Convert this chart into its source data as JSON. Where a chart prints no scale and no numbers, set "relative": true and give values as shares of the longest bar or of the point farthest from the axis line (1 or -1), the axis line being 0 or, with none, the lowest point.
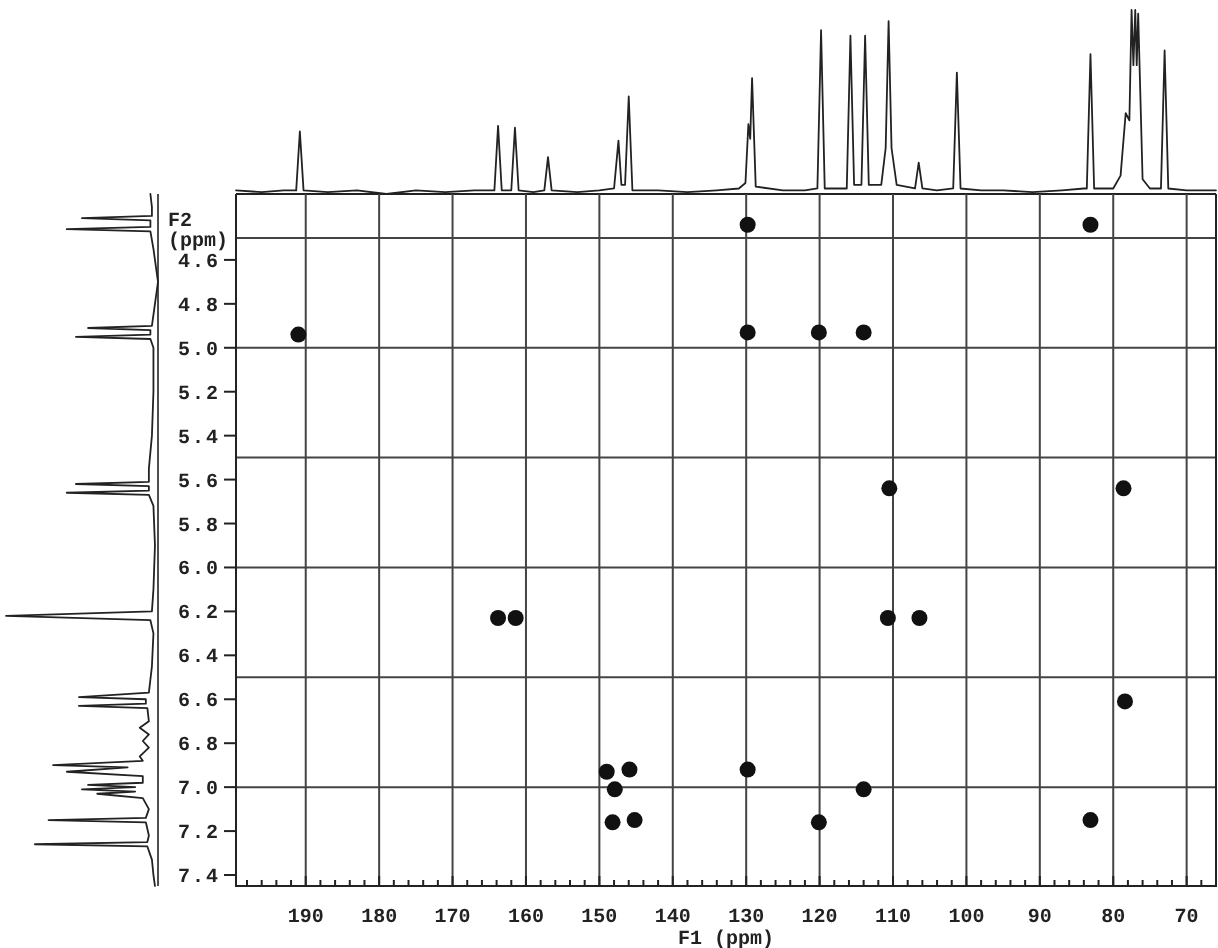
{
  "chart_data": [
    {
      "type": "line",
      "relative": true,
      "color": "#222222",
      "line_style": "solid",
      "xlim": [
        199.5,
        66
      ],
      "x": [
        199.5,
        196,
        193,
        191.3,
        190.8,
        190.3,
        187,
        183,
        179,
        175,
        171,
        167,
        164.3,
        163.8,
        163.3,
        162,
        161.5,
        161,
        159,
        157.5,
        157.0,
        156.5,
        153,
        150,
        148,
        147.4,
        147.0,
        146.5,
        146.0,
        145.5,
        142,
        138,
        134,
        131,
        130.1,
        129.7,
        129.45,
        129.2,
        128.7,
        125,
        122,
        120.3,
        119.8,
        119.3,
        117,
        116.3,
        115.8,
        115.3,
        114.3,
        113.8,
        113.3,
        111.6,
        111.0,
        110.6,
        110.2,
        109.5,
        107.0,
        106.5,
        106.0,
        104,
        101.8,
        101.3,
        100.8,
        98,
        95,
        91,
        87,
        84,
        83.6,
        83.1,
        82.6,
        80,
        79.0,
        78.3,
        77.8,
        77.5,
        77.25,
        77.0,
        76.8,
        76.6,
        76.0,
        75,
        73.5,
        73.0,
        72.5,
        70,
        67.5,
        66
      ],
      "values": [
        0.02,
        0.01,
        0.02,
        0.02,
        0.34,
        0.02,
        0.01,
        0.02,
        0,
        0.02,
        0.01,
        0.02,
        0.02,
        0.37,
        0.02,
        0.02,
        0.36,
        0.02,
        0.01,
        0.02,
        0.2,
        0.02,
        0.01,
        0.02,
        0.03,
        0.29,
        0.05,
        0.05,
        0.53,
        0.02,
        0.02,
        0.01,
        0.02,
        0.03,
        0.06,
        0.38,
        0.3,
        0.63,
        0.04,
        0.02,
        0.02,
        0.03,
        0.89,
        0.03,
        0.03,
        0.03,
        0.86,
        0.05,
        0.05,
        0.86,
        0.05,
        0.05,
        0.25,
        0.94,
        0.25,
        0.05,
        0.03,
        0.17,
        0.03,
        0.02,
        0.03,
        0.66,
        0.03,
        0.02,
        0.02,
        0.01,
        0.02,
        0.03,
        0.03,
        0.76,
        0.03,
        0.03,
        0.1,
        0.44,
        0.4,
        1.0,
        0.7,
        1.0,
        0.7,
        0.98,
        0.08,
        0.03,
        0.03,
        0.78,
        0.03,
        0.02,
        0.02,
        0.02
      ]
    },
    {
      "type": "line",
      "orientation": "horizontal",
      "relative": true,
      "color": "#222222",
      "line_style": "solid",
      "ylim": [
        7.45,
        4.3
      ],
      "x": [
        4.3,
        4.36,
        4.4,
        4.41,
        4.42,
        4.45,
        4.46,
        4.47,
        4.55,
        4.7,
        4.85,
        4.9,
        4.91,
        4.92,
        4.94,
        4.95,
        4.96,
        5.0,
        5.2,
        5.4,
        5.55,
        5.61,
        5.62,
        5.63,
        5.65,
        5.66,
        5.67,
        5.72,
        5.9,
        6.1,
        6.2,
        6.22,
        6.24,
        6.3,
        6.45,
        6.57,
        6.59,
        6.6,
        6.62,
        6.63,
        6.64,
        6.7,
        6.73,
        6.76,
        6.79,
        6.82,
        6.86,
        6.88,
        6.9,
        6.91,
        6.93,
        6.95,
        6.98,
        6.99,
        7.0,
        7.01,
        7.02,
        7.03,
        7.05,
        7.1,
        7.14,
        7.15,
        7.16,
        7.22,
        7.25,
        7.26,
        7.27,
        7.33,
        7.4,
        7.45
      ],
      "values": [
        -0.05,
        -0.04,
        -0.04,
        -0.5,
        -0.05,
        -0.05,
        -0.6,
        -0.05,
        -0.03,
        0,
        -0.03,
        -0.04,
        -0.46,
        -0.05,
        -0.05,
        -0.54,
        -0.05,
        -0.03,
        -0.03,
        -0.04,
        -0.06,
        -0.06,
        -0.54,
        -0.06,
        -0.06,
        -0.6,
        -0.06,
        -0.03,
        -0.02,
        -0.03,
        -0.04,
        -1.0,
        -0.05,
        -0.03,
        -0.04,
        -0.06,
        -0.52,
        -0.08,
        -0.08,
        -0.52,
        -0.07,
        -0.06,
        -0.12,
        -0.06,
        -0.1,
        -0.06,
        -0.12,
        -0.1,
        -0.69,
        -0.2,
        -0.6,
        -0.1,
        -0.1,
        -0.46,
        -0.15,
        -0.5,
        -0.15,
        -0.4,
        -0.1,
        -0.06,
        -0.08,
        -0.72,
        -0.08,
        -0.06,
        -0.07,
        -0.81,
        -0.07,
        -0.04,
        -0.03,
        -0.02
      ]
    },
    {
      "type": "scatter",
      "color": "#111111",
      "marker": "circle",
      "xlabel": "F1 (ppm)",
      "ylabel": "F2 (ppm)",
      "grid": "x",
      "xlim": [
        199.5,
        66
      ],
      "ylim": [
        7.45,
        4.3
      ],
      "xticks": [
        {
          "value": 198,
          "label": null
        },
        {
          "value": 196,
          "label": null
        },
        {
          "value": 194,
          "label": null
        },
        {
          "value": 192,
          "label": null
        },
        190,
        {
          "value": 188,
          "label": null
        },
        {
          "value": 186,
          "label": null
        },
        {
          "value": 184,
          "label": null
        },
        {
          "value": 182,
          "label": null
        },
        180,
        {
          "value": 178,
          "label": null
        },
        {
          "value": 176,
          "label": null
        },
        {
          "value": 174,
          "label": null
        },
        {
          "value": 172,
          "label": null
        },
        170,
        {
          "value": 168,
          "label": null
        },
        {
          "value": 166,
          "label": null
        },
        {
          "value": 164,
          "label": null
        },
        {
          "value": 162,
          "label": null
        },
        160,
        {
          "value": 158,
          "label": null
        },
        {
          "value": 156,
          "label": null
        },
        {
          "value": 154,
          "label": null
        },
        {
          "value": 152,
          "label": null
        },
        150,
        {
          "value": 148,
          "label": null
        },
        {
          "value": 146,
          "label": null
        },
        {
          "value": 144,
          "label": null
        },
        {
          "value": 142,
          "label": null
        },
        140,
        {
          "value": 138,
          "label": null
        },
        {
          "value": 136,
          "label": null
        },
        {
          "value": 134,
          "label": null
        },
        {
          "value": 132,
          "label": null
        },
        130,
        {
          "value": 128,
          "label": null
        },
        {
          "value": 126,
          "label": null
        },
        {
          "value": 124,
          "label": null
        },
        {
          "value": 122,
          "label": null
        },
        120,
        {
          "value": 118,
          "label": null
        },
        {
          "value": 116,
          "label": null
        },
        {
          "value": 114,
          "label": null
        },
        {
          "value": 112,
          "label": null
        },
        110,
        {
          "value": 108,
          "label": null
        },
        {
          "value": 106,
          "label": null
        },
        {
          "value": 104,
          "label": null
        },
        {
          "value": 102,
          "label": null
        },
        100,
        {
          "value": 98,
          "label": null
        },
        {
          "value": 96,
          "label": null
        },
        {
          "value": 94,
          "label": null
        },
        {
          "value": 92,
          "label": null
        },
        90,
        {
          "value": 88,
          "label": null
        },
        {
          "value": 86,
          "label": null
        },
        {
          "value": 84,
          "label": null
        },
        {
          "value": 82,
          "label": null
        },
        80,
        {
          "value": 78,
          "label": null
        },
        {
          "value": 76,
          "label": null
        },
        {
          "value": 74,
          "label": null
        },
        {
          "value": 72,
          "label": null
        },
        70,
        {
          "value": 68,
          "label": null
        }
      ],
      "yticks": [
        4.6,
        4.8,
        {
          "value": 5,
          "label": "5.0"
        },
        5.2,
        5.4,
        5.6,
        5.8,
        {
          "value": 6,
          "label": "6.0"
        },
        6.2,
        6.4,
        6.6,
        6.8,
        {
          "value": 7,
          "label": "7.0"
        },
        7.2,
        7.4
      ],
      "ref_lines": [
        {
          "axis": "y",
          "value": 4.5,
          "color": "#444444"
        },
        {
          "axis": "y",
          "value": 5.0,
          "color": "#444444"
        },
        {
          "axis": "y",
          "value": 5.5,
          "color": "#444444"
        },
        {
          "axis": "y",
          "value": 6.0,
          "color": "#444444"
        },
        {
          "axis": "y",
          "value": 6.5,
          "color": "#444444"
        },
        {
          "axis": "y",
          "value": 7.0,
          "color": "#444444"
        }
      ],
      "x": [
        191.0,
        163.8,
        161.4,
        149.0,
        145.9,
        147.9,
        148.2,
        145.2,
        129.8,
        83.1,
        129.8,
        120.1,
        114.0,
        110.5,
        78.6,
        110.7,
        106.4,
        78.4,
        129.8,
        114.0,
        120.1,
        83.1
      ],
      "values": [
        4.94,
        6.23,
        6.23,
        6.93,
        6.92,
        7.01,
        7.16,
        7.15,
        4.44,
        4.44,
        4.93,
        4.93,
        4.93,
        5.64,
        5.64,
        6.23,
        6.23,
        6.61,
        6.92,
        7.01,
        7.16,
        7.15
      ]
    }
  ]
}
